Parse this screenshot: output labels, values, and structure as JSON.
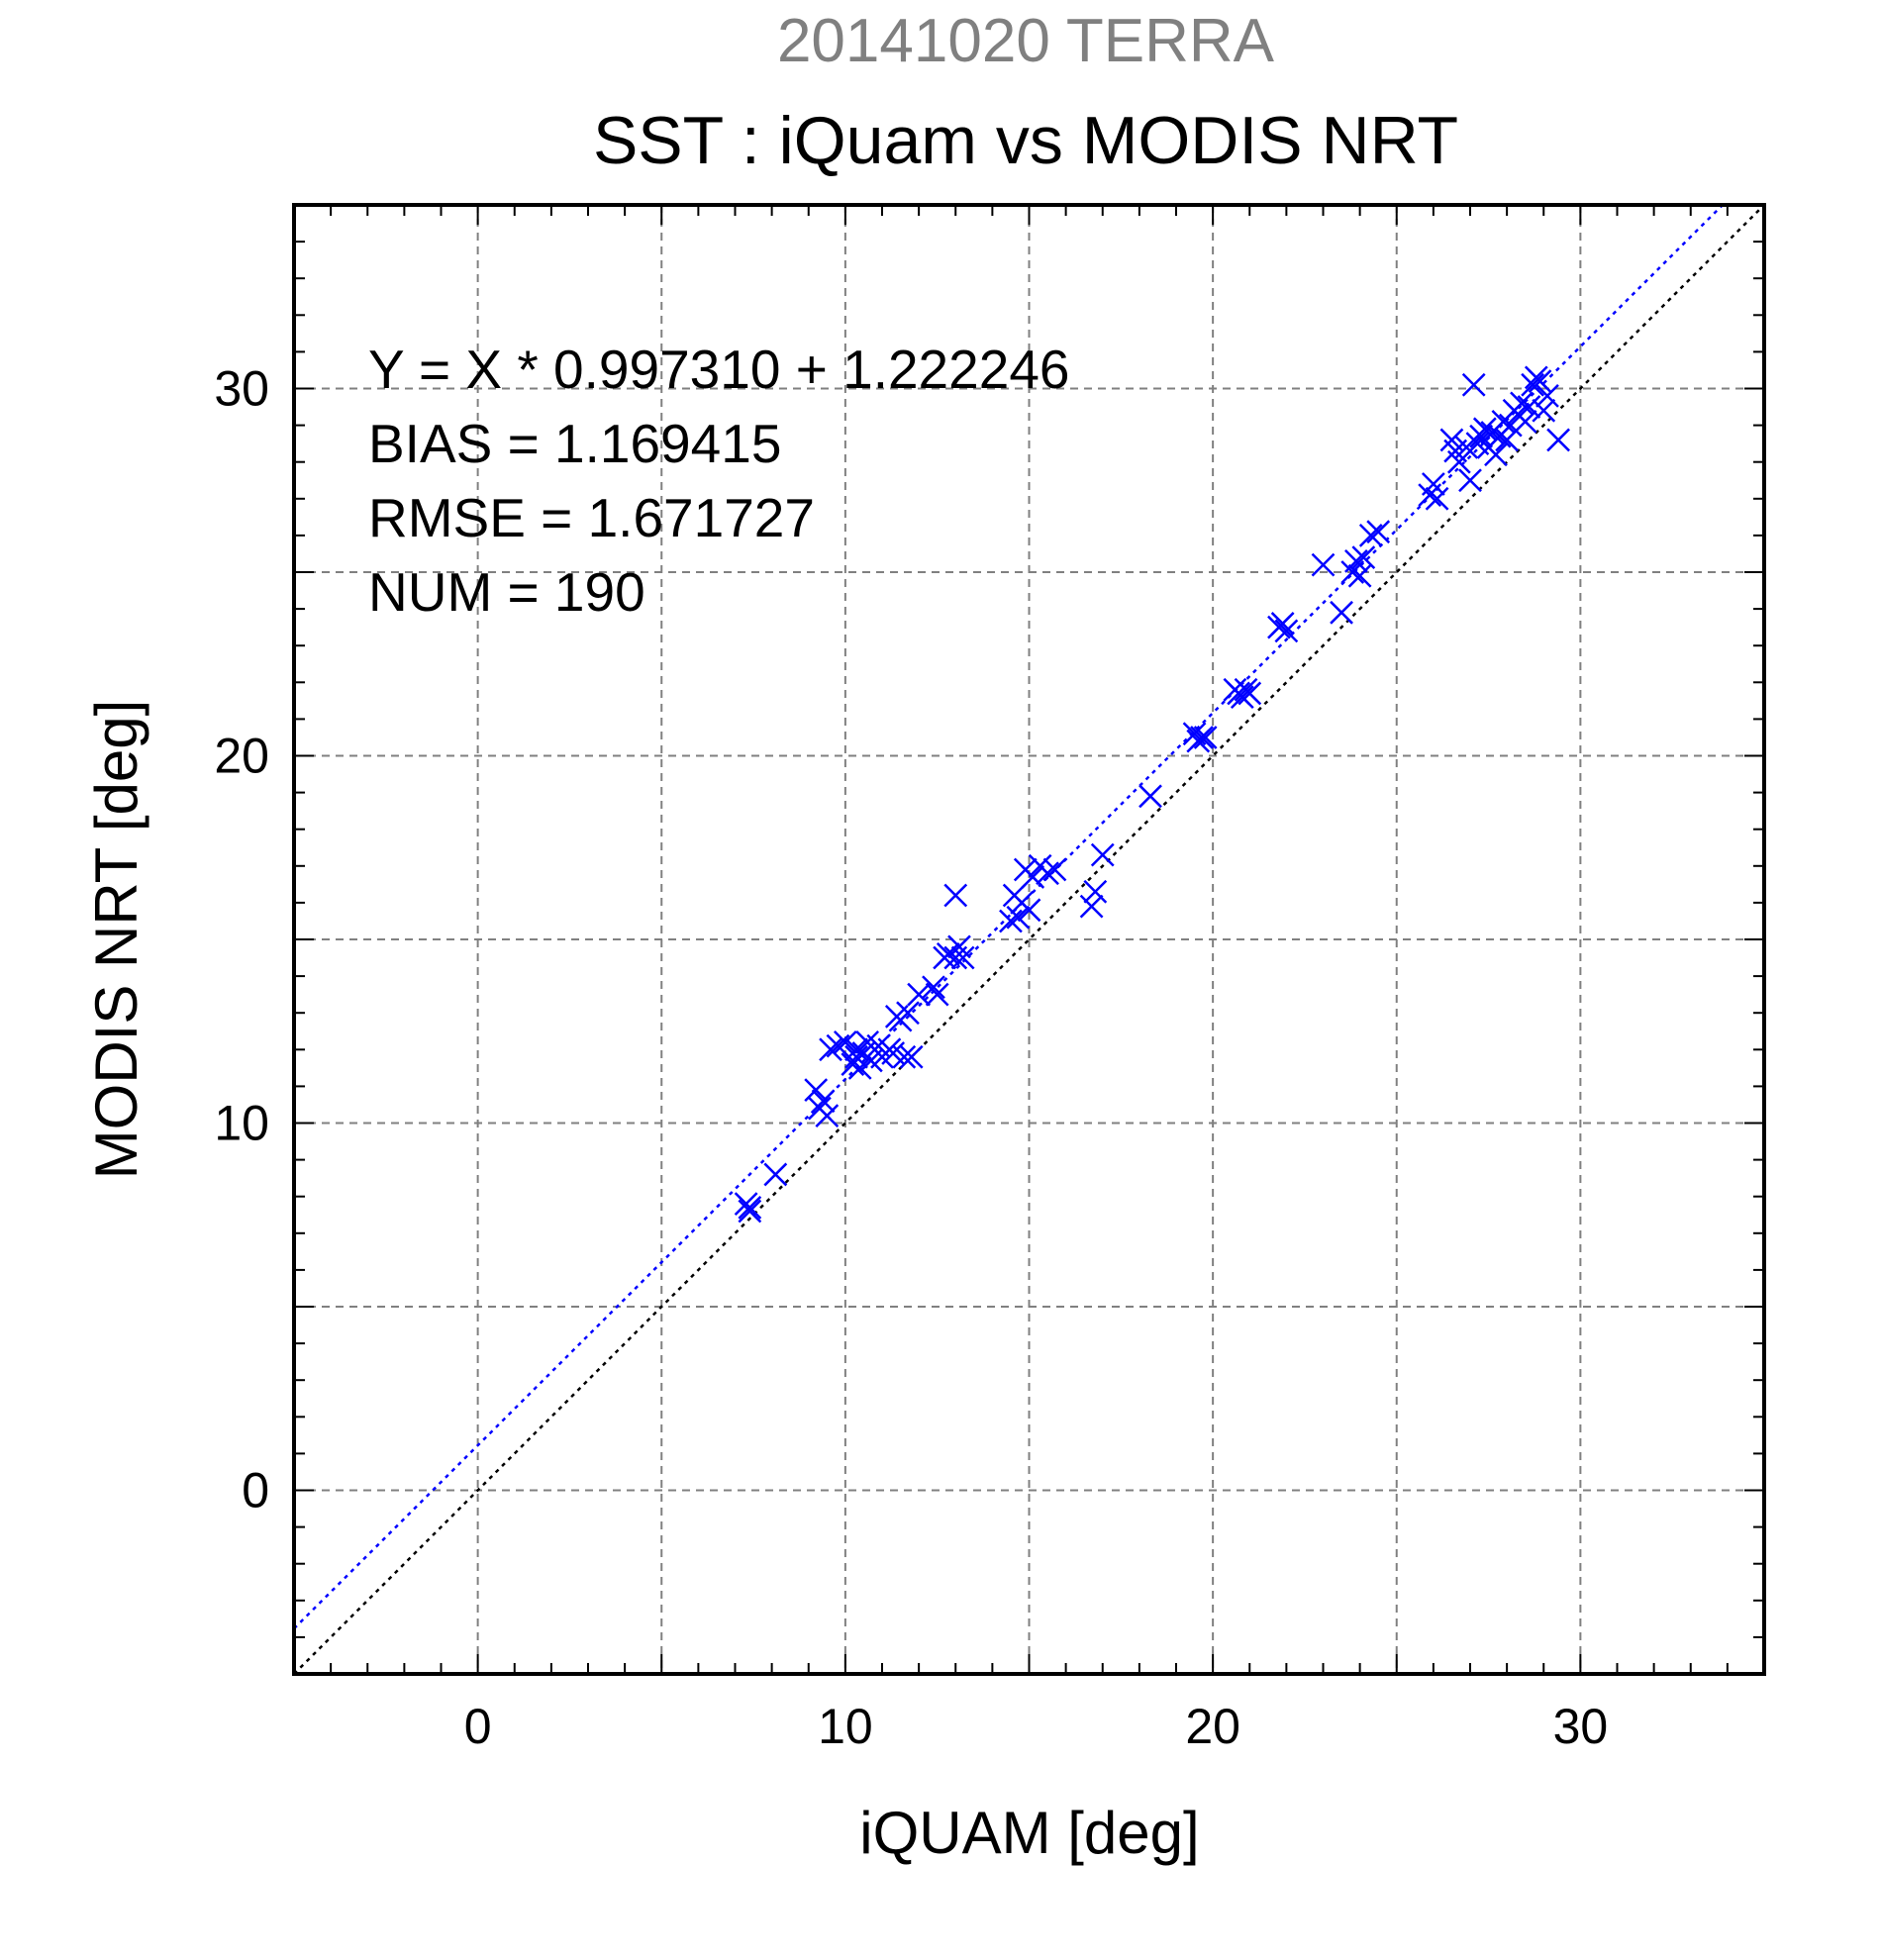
{
  "chart_data": {
    "type": "scatter",
    "supertitle": "20141020 TERRA",
    "title": "SST : iQuam vs MODIS NRT",
    "xlabel": "iQUAM [deg]",
    "ylabel": "MODIS NRT [deg]",
    "xlim": [
      -5,
      35
    ],
    "ylim": [
      -5,
      35
    ],
    "xticks": [
      0,
      10,
      20,
      30
    ],
    "yticks": [
      0,
      10,
      20,
      30
    ],
    "grid_step": 5,
    "minor_step": 1,
    "grid": true,
    "marker": "x",
    "colors": {
      "points": "#0000ff",
      "fit_line": "#0000ff",
      "identity_line": "#000000",
      "grid": "#808080"
    },
    "fit": {
      "slope": 0.99731,
      "intercept": 1.222246
    },
    "annotations": [
      "Y = X * 0.997310 + 1.222246",
      "BIAS = 1.169415",
      "RMSE = 1.671727",
      "NUM = 190"
    ],
    "points": [
      [
        7.3,
        7.8
      ],
      [
        7.4,
        7.6
      ],
      [
        7.4,
        7.7
      ],
      [
        8.1,
        8.6
      ],
      [
        9.2,
        10.9
      ],
      [
        9.3,
        10.4
      ],
      [
        9.4,
        10.6
      ],
      [
        9.5,
        10.2
      ],
      [
        9.6,
        12.0
      ],
      [
        9.8,
        12.1
      ],
      [
        10.0,
        12.2
      ],
      [
        10.2,
        11.6
      ],
      [
        10.3,
        11.8
      ],
      [
        10.3,
        12.0
      ],
      [
        10.4,
        11.5
      ],
      [
        10.5,
        11.9
      ],
      [
        10.6,
        12.2
      ],
      [
        10.7,
        11.7
      ],
      [
        10.9,
        12.1
      ],
      [
        11.0,
        11.8
      ],
      [
        11.2,
        12.0
      ],
      [
        11.3,
        11.9
      ],
      [
        11.4,
        12.9
      ],
      [
        11.5,
        12.8
      ],
      [
        11.6,
        11.8
      ],
      [
        11.7,
        13.0
      ],
      [
        11.8,
        11.8
      ],
      [
        12.0,
        13.5
      ],
      [
        12.4,
        13.7
      ],
      [
        12.5,
        13.5
      ],
      [
        12.7,
        14.5
      ],
      [
        12.8,
        14.6
      ],
      [
        13.0,
        14.5
      ],
      [
        13.1,
        14.8
      ],
      [
        13.2,
        14.5
      ],
      [
        13.0,
        16.2
      ],
      [
        14.5,
        15.5
      ],
      [
        14.6,
        16.2
      ],
      [
        14.7,
        15.6
      ],
      [
        14.8,
        16.0
      ],
      [
        14.9,
        16.9
      ],
      [
        15.0,
        15.8
      ],
      [
        15.1,
        16.7
      ],
      [
        15.3,
        17.0
      ],
      [
        15.5,
        16.8
      ],
      [
        15.7,
        16.9
      ],
      [
        16.7,
        15.9
      ],
      [
        16.8,
        16.3
      ],
      [
        17.0,
        17.3
      ],
      [
        18.3,
        18.9
      ],
      [
        19.5,
        20.6
      ],
      [
        19.6,
        20.4
      ],
      [
        19.7,
        20.5
      ],
      [
        19.8,
        20.5
      ],
      [
        20.6,
        21.8
      ],
      [
        20.7,
        21.7
      ],
      [
        20.8,
        21.6
      ],
      [
        20.9,
        21.8
      ],
      [
        21.0,
        21.7
      ],
      [
        21.8,
        23.5
      ],
      [
        21.9,
        23.6
      ],
      [
        22.0,
        23.4
      ],
      [
        23.0,
        25.2
      ],
      [
        23.5,
        23.9
      ],
      [
        23.8,
        25.0
      ],
      [
        23.9,
        25.3
      ],
      [
        24.0,
        24.9
      ],
      [
        24.1,
        25.4
      ],
      [
        24.3,
        26.0
      ],
      [
        24.5,
        26.1
      ],
      [
        25.9,
        27.1
      ],
      [
        26.0,
        27.4
      ],
      [
        26.1,
        27.0
      ],
      [
        26.5,
        28.6
      ],
      [
        26.6,
        28.3
      ],
      [
        26.7,
        28.0
      ],
      [
        26.9,
        28.4
      ],
      [
        27.0,
        27.5
      ],
      [
        27.1,
        30.1
      ],
      [
        27.2,
        28.5
      ],
      [
        27.3,
        28.7
      ],
      [
        27.4,
        28.9
      ],
      [
        27.5,
        28.4
      ],
      [
        27.6,
        28.8
      ],
      [
        27.7,
        28.2
      ],
      [
        27.8,
        28.7
      ],
      [
        27.9,
        29.1
      ],
      [
        28.0,
        28.6
      ],
      [
        28.1,
        29.0
      ],
      [
        28.2,
        29.4
      ],
      [
        28.3,
        29.3
      ],
      [
        28.4,
        29.6
      ],
      [
        28.5,
        29.1
      ],
      [
        28.6,
        29.5
      ],
      [
        28.7,
        30.1
      ],
      [
        28.8,
        30.3
      ],
      [
        28.9,
        30.2
      ],
      [
        29.0,
        29.4
      ],
      [
        29.1,
        29.8
      ],
      [
        29.4,
        28.6
      ]
    ]
  }
}
